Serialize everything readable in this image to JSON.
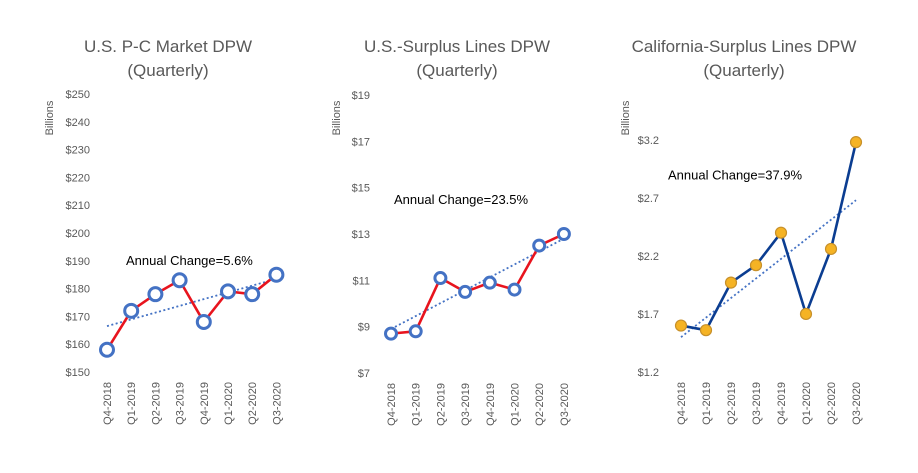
{
  "chart_data": [
    {
      "type": "line",
      "title_lines": [
        "U.S. P-C Market DPW",
        "(Quarterly)"
      ],
      "ylabel": "Billions",
      "categories": [
        "Q4-2018",
        "Q1-2019",
        "Q2-2019",
        "Q3-2019",
        "Q4-2019",
        "Q1-2020",
        "Q2-2020",
        "Q3-2020"
      ],
      "values": [
        158,
        172,
        178,
        183,
        168,
        179,
        178,
        185
      ],
      "ylim": [
        150,
        250
      ],
      "yticks": [
        150,
        160,
        170,
        180,
        190,
        200,
        210,
        220,
        230,
        240,
        250
      ],
      "ytick_labels": [
        "$150",
        "$160",
        "$170",
        "$180",
        "$190",
        "$200",
        "$210",
        "$220",
        "$230",
        "$240",
        "$250"
      ],
      "trendline": [
        166.5,
        183.5
      ],
      "annotation": "Annual Change=5.6%",
      "annotation_value": 188.5,
      "line_color": "#e8141e",
      "marker_fill": "#ffffff",
      "marker_stroke": "#4472c4",
      "trend_color": "#4472c4"
    },
    {
      "type": "line",
      "title_lines": [
        "U.S.-Surplus Lines DPW",
        "(Quarterly)"
      ],
      "ylabel": "Billions",
      "categories": [
        "Q4-2018",
        "Q1-2019",
        "Q2-2019",
        "Q3-2019",
        "Q4-2019",
        "Q1-2020",
        "Q2-2020",
        "Q3-2020"
      ],
      "values": [
        8.7,
        8.8,
        11.1,
        10.5,
        10.9,
        10.6,
        12.5,
        13.0
      ],
      "ylim": [
        7,
        19
      ],
      "yticks": [
        7,
        9,
        11,
        13,
        15,
        17,
        19
      ],
      "ytick_labels": [
        "$7",
        "$9",
        "$11",
        "$13",
        "$15",
        "$17",
        "$19"
      ],
      "trendline": [
        8.9,
        12.8
      ],
      "annotation": "Annual Change=23.5%",
      "annotation_value": 14.3,
      "line_color": "#e8141e",
      "marker_fill": "#ffffff",
      "marker_stroke": "#4472c4",
      "trend_color": "#4472c4"
    },
    {
      "type": "line",
      "title_lines": [
        "California-Surplus Lines DPW",
        "(Quarterly)"
      ],
      "ylabel": "Billions",
      "categories": [
        "Q4-2018",
        "Q1-2019",
        "Q2-2019",
        "Q3-2019",
        "Q4-2019",
        "Q1-2020",
        "Q2-2020",
        "Q3-2020"
      ],
      "values": [
        1.6,
        1.56,
        1.97,
        2.12,
        2.4,
        1.7,
        2.26,
        3.18
      ],
      "ylim": [
        1.2,
        3.5
      ],
      "yticks": [
        1.2,
        1.7,
        2.2,
        2.7,
        3.2
      ],
      "ytick_labels": [
        "$1.2",
        "$1.7",
        "$2.2",
        "$2.7",
        "$3.2"
      ],
      "trendline": [
        1.5,
        2.68
      ],
      "annotation": "Annual Change=37.9%",
      "annotation_value": 2.86,
      "line_color": "#0b3d91",
      "marker_fill": "#f5b324",
      "marker_stroke": "#c7902a",
      "trend_color": "#4472c4"
    }
  ]
}
